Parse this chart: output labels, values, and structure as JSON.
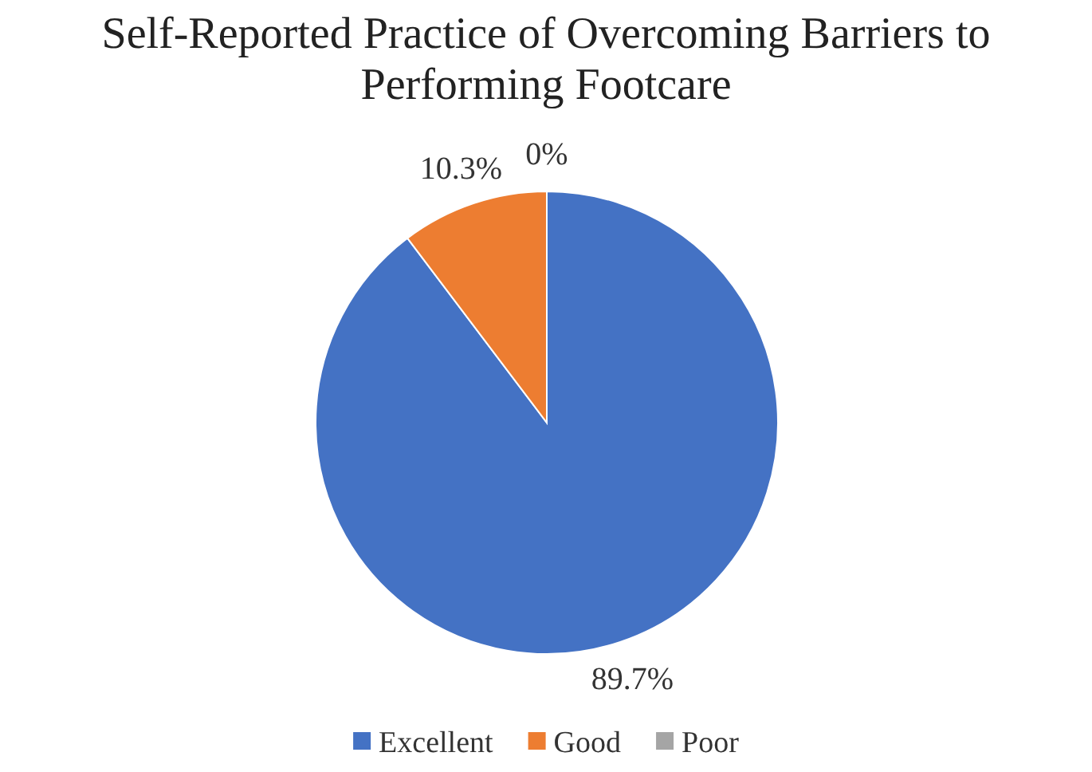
{
  "chart_data": {
    "type": "pie",
    "title": "Self-Reported Practice of Overcoming Barriers to Performing Footcare",
    "categories": [
      "Excellent",
      "Good",
      "Poor"
    ],
    "values": [
      89.7,
      10.3,
      0
    ],
    "colors": [
      "#4472c4",
      "#ed7d31",
      "#a5a5a5"
    ],
    "value_labels": [
      "89.7%",
      "10.3%",
      "0%"
    ],
    "legend": "bottom"
  }
}
